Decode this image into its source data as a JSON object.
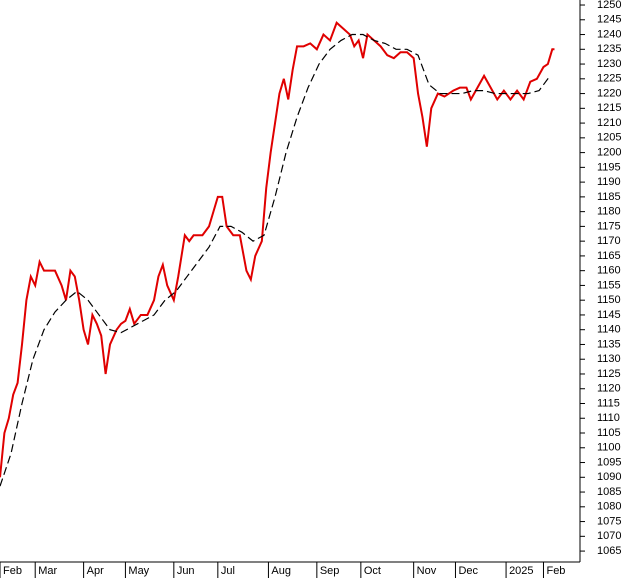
{
  "chart_data": {
    "type": "line",
    "xlim": [
      0,
      263.6
    ],
    "ylim": [
      1061.3,
      1251.7
    ],
    "xticks": [
      {
        "value": 0,
        "label": "Feb"
      },
      {
        "value": 16,
        "label": "Mar"
      },
      {
        "value": 38,
        "label": "Apr"
      },
      {
        "value": 57,
        "label": "May"
      },
      {
        "value": 79,
        "label": "Jun"
      },
      {
        "value": 99,
        "label": "Jul"
      },
      {
        "value": 122,
        "label": "Aug"
      },
      {
        "value": 144,
        "label": "Sep"
      },
      {
        "value": 164,
        "label": "Oct"
      },
      {
        "value": 188,
        "label": "Nov"
      },
      {
        "value": 207,
        "label": "Dec"
      },
      {
        "value": 230,
        "label": "2025"
      },
      {
        "value": 247,
        "label": "Feb"
      }
    ],
    "yticks": [
      1065,
      1070,
      1075,
      1080,
      1085,
      1090,
      1095,
      1100,
      1105,
      1110,
      1115,
      1120,
      1125,
      1130,
      1135,
      1140,
      1145,
      1150,
      1155,
      1160,
      1165,
      1170,
      1175,
      1180,
      1185,
      1190,
      1195,
      1200,
      1205,
      1210,
      1215,
      1220,
      1225,
      1230,
      1235,
      1240,
      1245,
      1250
    ],
    "series": [
      {
        "color": "#e00000",
        "dash": false,
        "x": [
          0,
          2,
          4,
          6,
          8,
          10,
          12,
          14,
          16,
          18,
          20,
          22,
          25,
          28,
          30,
          32,
          34,
          36,
          38,
          40,
          42,
          44,
          46,
          48,
          50,
          53,
          55,
          57,
          59,
          61,
          64,
          67,
          70,
          72,
          74,
          76,
          79,
          81,
          84,
          86,
          88,
          92,
          95,
          97,
          99,
          101,
          103,
          106,
          109,
          112,
          114,
          116,
          119,
          121,
          123,
          125,
          127,
          129,
          131,
          133,
          135,
          138,
          141,
          144,
          147,
          150,
          153,
          156,
          159,
          161,
          163,
          165,
          167,
          170,
          173,
          176,
          179,
          182,
          185,
          188,
          190,
          192,
          194,
          196,
          199,
          202,
          206,
          209,
          212,
          214,
          217,
          220,
          223,
          226,
          229,
          232,
          235,
          238,
          241,
          244,
          247,
          249,
          251,
          252
        ],
        "values": [
          1090,
          1105,
          1110,
          1118,
          1122,
          1135,
          1150,
          1158,
          1155,
          1163,
          1160,
          1160,
          1160,
          1155,
          1150,
          1160,
          1158,
          1150,
          1140,
          1135,
          1145,
          1142,
          1138,
          1125,
          1135,
          1140,
          1142,
          1143,
          1147,
          1142,
          1145,
          1145,
          1150,
          1158,
          1162,
          1155,
          1150,
          1158,
          1172,
          1170,
          1172,
          1172,
          1175,
          1180,
          1185,
          1185,
          1175,
          1172,
          1172,
          1160,
          1157,
          1165,
          1170,
          1188,
          1200,
          1210,
          1220,
          1225,
          1218,
          1228,
          1236,
          1236,
          1237,
          1235,
          1240,
          1238,
          1244,
          1242,
          1240,
          1236,
          1238,
          1232,
          1240,
          1238,
          1236,
          1233,
          1232,
          1234,
          1234,
          1232,
          1220,
          1212,
          1202,
          1215,
          1220,
          1219,
          1221,
          1222,
          1222,
          1218,
          1222,
          1226,
          1222,
          1218,
          1221,
          1218,
          1221,
          1218,
          1224,
          1225,
          1229,
          1230,
          1235,
          1235
        ]
      },
      {
        "color": "#000000",
        "dash": true,
        "x": [
          0,
          5,
          10,
          15,
          20,
          25,
          30,
          35,
          40,
          45,
          50,
          55,
          60,
          65,
          70,
          75,
          80,
          85,
          90,
          95,
          100,
          105,
          110,
          115,
          120,
          125,
          130,
          135,
          140,
          145,
          150,
          155,
          160,
          165,
          170,
          175,
          180,
          185,
          190,
          195,
          200,
          205,
          210,
          215,
          220,
          225,
          230,
          235,
          240,
          245,
          250
        ],
        "values": [
          1087,
          1098,
          1115,
          1130,
          1140,
          1146,
          1150,
          1153,
          1150,
          1145,
          1140,
          1139,
          1141,
          1143,
          1145,
          1150,
          1153,
          1158,
          1163,
          1168,
          1175,
          1175,
          1173,
          1170,
          1172,
          1185,
          1200,
          1212,
          1222,
          1230,
          1235,
          1238,
          1240,
          1240,
          1238,
          1237,
          1235,
          1235,
          1233,
          1223,
          1220,
          1220,
          1220,
          1221,
          1221,
          1220,
          1220,
          1220,
          1220,
          1221,
          1226
        ]
      }
    ]
  }
}
